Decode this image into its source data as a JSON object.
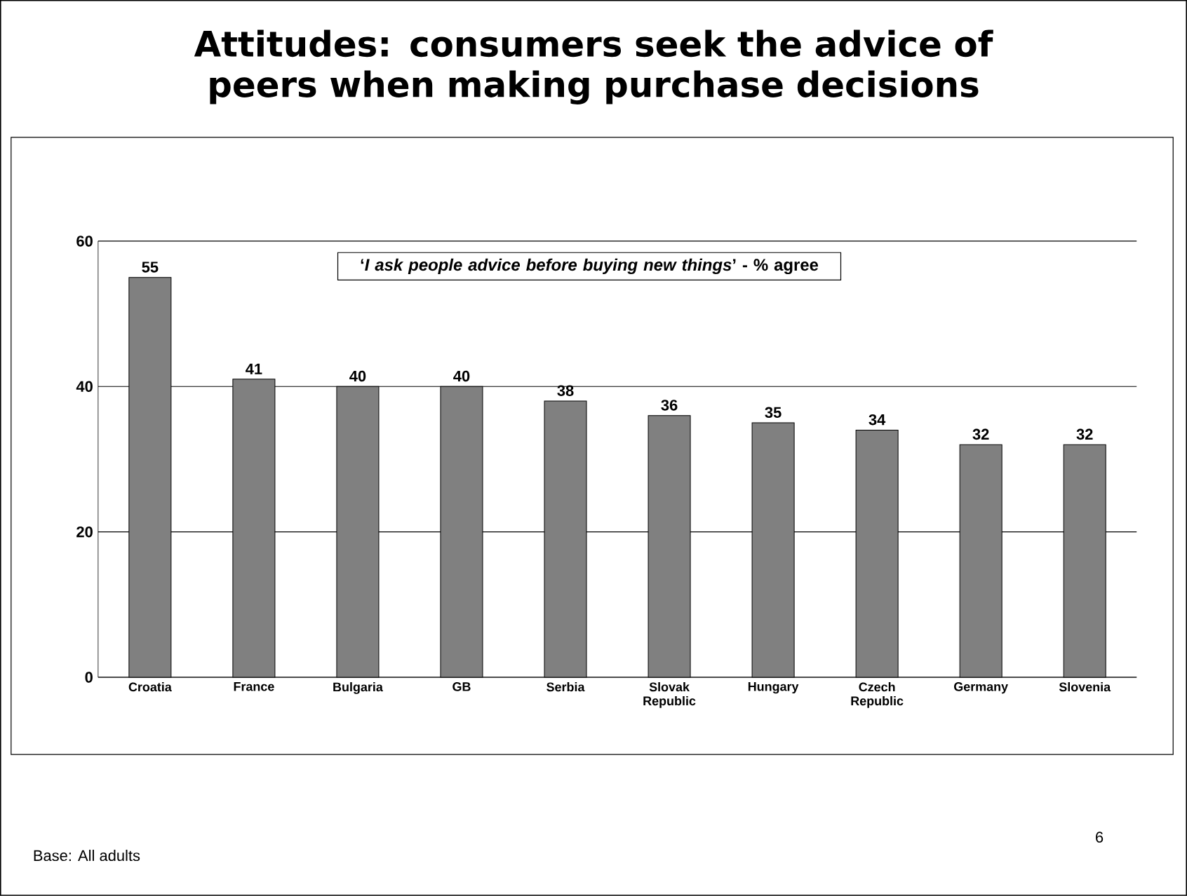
{
  "chart_data": {
    "type": "bar",
    "title": "Attitudes: consumers seek the advice of peers when making purchase decisions",
    "subtitle": "‘*I ask people advice before buying new things*’ - % agree",
    "categories": [
      "Croatia",
      "France",
      "Bulgaria",
      "GB",
      "Serbia",
      "Slovak Republic",
      "Hungary",
      "Czech Republic",
      "Germany",
      "Slovenia"
    ],
    "values": [
      55,
      41,
      40,
      40,
      38,
      36,
      35,
      34,
      32,
      32
    ],
    "color": "#808080",
    "ylim": [
      0,
      60
    ],
    "yticks": [
      0,
      20,
      40,
      60
    ],
    "grid": "y",
    "data_labels": true,
    "annotations": [
      "Base: All adults",
      "6"
    ]
  }
}
